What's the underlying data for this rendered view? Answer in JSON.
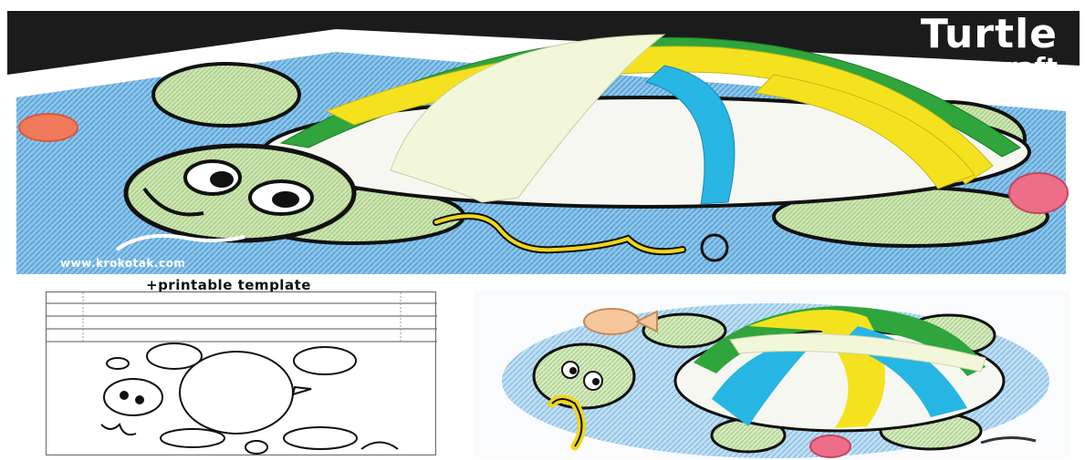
{
  "hero": {
    "title": "Turtle",
    "subtitle": "craft",
    "watermark": "www.krokotak.com"
  },
  "template": {
    "caption": "+printable template"
  },
  "colors": {
    "ocean_blue": "#6fb4e0",
    "turtle_green": "#b7d99a",
    "strip_green": "#2fa53c",
    "strip_yellow": "#f5e21e",
    "strip_cyan": "#27b6e4",
    "strip_cream": "#f2f7d9",
    "fish_orange": "#f07a5a",
    "seahorse_yellow": "#f2d61c",
    "crab_pink": "#ee6e8a"
  }
}
